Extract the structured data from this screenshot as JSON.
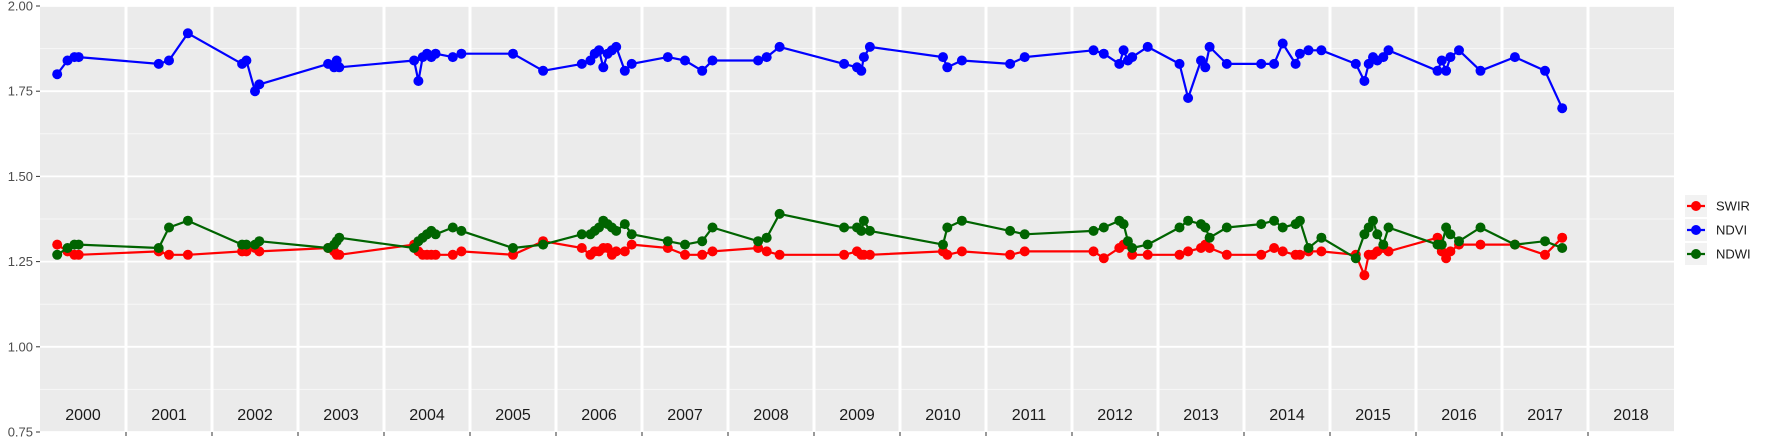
{
  "chart_data": {
    "type": "line",
    "title": "",
    "xlabel": "",
    "ylabel": "",
    "xlim": [
      2000.0,
      2019.0
    ],
    "ylim": [
      0.75,
      2.0
    ],
    "y_ticks": [
      "0.75",
      "1.00",
      "1.25",
      "1.50",
      "1.75",
      "2.00"
    ],
    "year_labels": [
      "2000",
      "2001",
      "2002",
      "2003",
      "2004",
      "2005",
      "2006",
      "2007",
      "2008",
      "2009",
      "2010",
      "2011",
      "2012",
      "2013",
      "2014",
      "2015",
      "2016",
      "2017",
      "2018"
    ],
    "grid": true,
    "legend_position": "right",
    "series": [
      {
        "name": "SWIR",
        "color": "#ff0000",
        "x": [
          2000.2,
          2000.32,
          2000.4,
          2000.45,
          2001.38,
          2001.5,
          2001.72,
          2002.35,
          2002.4,
          2002.5,
          2002.55,
          2003.35,
          2003.42,
          2003.45,
          2003.48,
          2004.35,
          2004.4,
          2004.45,
          2004.5,
          2004.55,
          2004.6,
          2004.8,
          2004.9,
          2005.5,
          2005.85,
          2006.3,
          2006.4,
          2006.45,
          2006.5,
          2006.55,
          2006.6,
          2006.65,
          2006.7,
          2006.8,
          2006.88,
          2007.3,
          2007.5,
          2007.7,
          2007.82,
          2008.35,
          2008.45,
          2008.6,
          2009.35,
          2009.5,
          2009.55,
          2009.58,
          2009.65,
          2010.5,
          2010.55,
          2010.72,
          2011.28,
          2011.45,
          2012.25,
          2012.37,
          2012.55,
          2012.6,
          2012.65,
          2012.7,
          2012.88,
          2013.25,
          2013.35,
          2013.5,
          2013.55,
          2013.6,
          2013.8,
          2014.2,
          2014.35,
          2014.45,
          2014.6,
          2014.65,
          2014.75,
          2014.9,
          2015.3,
          2015.4,
          2015.45,
          2015.5,
          2015.55,
          2015.62,
          2015.68,
          2016.25,
          2016.3,
          2016.35,
          2016.4,
          2016.5,
          2016.75,
          2017.15,
          2017.5,
          2017.7
        ],
        "y": [
          1.3,
          1.28,
          1.27,
          1.27,
          1.28,
          1.27,
          1.27,
          1.28,
          1.28,
          1.29,
          1.28,
          1.29,
          1.28,
          1.27,
          1.27,
          1.3,
          1.28,
          1.27,
          1.27,
          1.27,
          1.27,
          1.27,
          1.28,
          1.27,
          1.31,
          1.29,
          1.27,
          1.28,
          1.28,
          1.29,
          1.29,
          1.27,
          1.28,
          1.28,
          1.3,
          1.29,
          1.27,
          1.27,
          1.28,
          1.29,
          1.28,
          1.27,
          1.27,
          1.28,
          1.27,
          1.27,
          1.27,
          1.28,
          1.27,
          1.28,
          1.27,
          1.28,
          1.28,
          1.26,
          1.29,
          1.3,
          1.3,
          1.27,
          1.27,
          1.27,
          1.28,
          1.29,
          1.3,
          1.29,
          1.27,
          1.27,
          1.29,
          1.28,
          1.27,
          1.27,
          1.28,
          1.28,
          1.27,
          1.21,
          1.27,
          1.27,
          1.28,
          1.29,
          1.28,
          1.32,
          1.28,
          1.26,
          1.28,
          1.3,
          1.3,
          1.3,
          1.27,
          1.32
        ]
      },
      {
        "name": "NDVI",
        "color": "#0000ff",
        "x": [
          2000.2,
          2000.32,
          2000.4,
          2000.45,
          2001.38,
          2001.5,
          2001.72,
          2002.35,
          2002.4,
          2002.5,
          2002.55,
          2003.35,
          2003.42,
          2003.45,
          2003.48,
          2004.35,
          2004.4,
          2004.45,
          2004.5,
          2004.55,
          2004.6,
          2004.8,
          2004.9,
          2005.5,
          2005.85,
          2006.3,
          2006.4,
          2006.45,
          2006.5,
          2006.55,
          2006.6,
          2006.65,
          2006.7,
          2006.8,
          2006.88,
          2007.3,
          2007.5,
          2007.7,
          2007.82,
          2008.35,
          2008.45,
          2008.6,
          2009.35,
          2009.5,
          2009.55,
          2009.58,
          2009.65,
          2010.5,
          2010.55,
          2010.72,
          2011.28,
          2011.45,
          2012.25,
          2012.37,
          2012.55,
          2012.6,
          2012.65,
          2012.7,
          2012.88,
          2013.25,
          2013.35,
          2013.5,
          2013.55,
          2013.6,
          2013.8,
          2014.2,
          2014.35,
          2014.45,
          2014.6,
          2014.65,
          2014.75,
          2014.9,
          2015.3,
          2015.4,
          2015.45,
          2015.5,
          2015.55,
          2015.62,
          2015.68,
          2016.25,
          2016.3,
          2016.35,
          2016.4,
          2016.5,
          2016.75,
          2017.15,
          2017.5,
          2017.7
        ],
        "y": [
          1.8,
          1.84,
          1.85,
          1.85,
          1.83,
          1.84,
          1.92,
          1.83,
          1.84,
          1.75,
          1.77,
          1.83,
          1.82,
          1.84,
          1.82,
          1.84,
          1.78,
          1.85,
          1.86,
          1.85,
          1.86,
          1.85,
          1.86,
          1.86,
          1.81,
          1.83,
          1.84,
          1.86,
          1.87,
          1.82,
          1.86,
          1.87,
          1.88,
          1.81,
          1.83,
          1.85,
          1.84,
          1.81,
          1.84,
          1.84,
          1.85,
          1.88,
          1.83,
          1.82,
          1.81,
          1.85,
          1.88,
          1.85,
          1.82,
          1.84,
          1.83,
          1.85,
          1.87,
          1.86,
          1.83,
          1.87,
          1.84,
          1.85,
          1.88,
          1.83,
          1.73,
          1.84,
          1.82,
          1.88,
          1.83,
          1.83,
          1.83,
          1.89,
          1.83,
          1.86,
          1.87,
          1.87,
          1.83,
          1.78,
          1.83,
          1.85,
          1.84,
          1.85,
          1.87,
          1.81,
          1.84,
          1.81,
          1.85,
          1.87,
          1.81,
          1.85,
          1.81,
          1.7
        ]
      },
      {
        "name": "NDWI",
        "color": "#006400",
        "x": [
          2000.2,
          2000.32,
          2000.4,
          2000.45,
          2001.38,
          2001.5,
          2001.72,
          2002.35,
          2002.4,
          2002.5,
          2002.55,
          2003.35,
          2003.42,
          2003.45,
          2003.48,
          2004.35,
          2004.4,
          2004.45,
          2004.5,
          2004.55,
          2004.6,
          2004.8,
          2004.9,
          2005.5,
          2005.85,
          2006.3,
          2006.4,
          2006.45,
          2006.5,
          2006.55,
          2006.6,
          2006.65,
          2006.7,
          2006.8,
          2006.88,
          2007.3,
          2007.5,
          2007.7,
          2007.82,
          2008.35,
          2008.45,
          2008.6,
          2009.35,
          2009.5,
          2009.55,
          2009.58,
          2009.65,
          2010.5,
          2010.55,
          2010.72,
          2011.28,
          2011.45,
          2012.25,
          2012.37,
          2012.55,
          2012.6,
          2012.65,
          2012.7,
          2012.88,
          2013.25,
          2013.35,
          2013.5,
          2013.55,
          2013.6,
          2013.8,
          2014.2,
          2014.35,
          2014.45,
          2014.6,
          2014.65,
          2014.75,
          2014.9,
          2015.3,
          2015.4,
          2015.45,
          2015.5,
          2015.55,
          2015.62,
          2015.68,
          2016.25,
          2016.3,
          2016.35,
          2016.4,
          2016.5,
          2016.75,
          2017.15,
          2017.5,
          2017.7
        ],
        "y": [
          1.27,
          1.29,
          1.3,
          1.3,
          1.29,
          1.35,
          1.37,
          1.3,
          1.3,
          1.3,
          1.31,
          1.29,
          1.3,
          1.31,
          1.32,
          1.29,
          1.31,
          1.32,
          1.33,
          1.34,
          1.33,
          1.35,
          1.34,
          1.29,
          1.3,
          1.33,
          1.33,
          1.34,
          1.35,
          1.37,
          1.36,
          1.35,
          1.34,
          1.36,
          1.33,
          1.31,
          1.3,
          1.31,
          1.35,
          1.31,
          1.32,
          1.39,
          1.35,
          1.35,
          1.34,
          1.37,
          1.34,
          1.3,
          1.35,
          1.37,
          1.34,
          1.33,
          1.34,
          1.35,
          1.37,
          1.36,
          1.31,
          1.29,
          1.3,
          1.35,
          1.37,
          1.36,
          1.35,
          1.32,
          1.35,
          1.36,
          1.37,
          1.35,
          1.36,
          1.37,
          1.29,
          1.32,
          1.26,
          1.33,
          1.35,
          1.37,
          1.33,
          1.3,
          1.35,
          1.3,
          1.3,
          1.35,
          1.33,
          1.31,
          1.35,
          1.3,
          1.31,
          1.29
        ]
      }
    ]
  }
}
